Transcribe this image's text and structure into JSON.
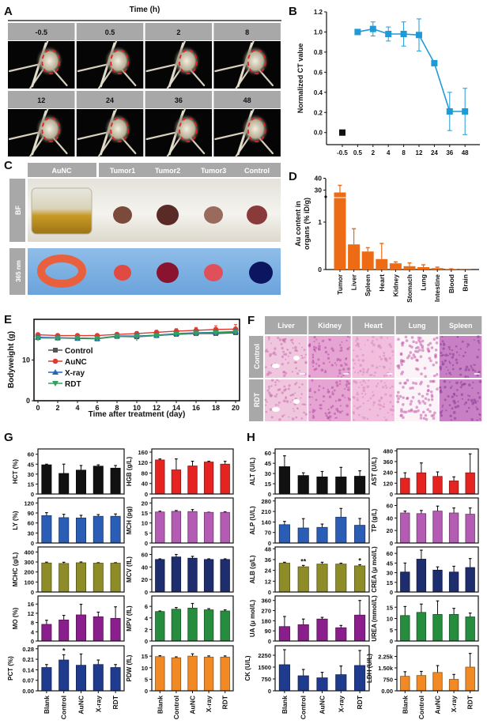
{
  "panel_a": {
    "label": "A",
    "title": "Time (h)",
    "timepoints": [
      "-0.5",
      "0.5",
      "2",
      "8",
      "12",
      "24",
      "36",
      "48"
    ]
  },
  "panel_b": {
    "label": "B",
    "chart_ref": 0
  },
  "panel_c": {
    "label": "C",
    "columns": [
      "AuNC",
      "Tumor1",
      "Tumor2",
      "Tumor3",
      "Control"
    ],
    "rows": [
      "BF",
      "365 nm"
    ]
  },
  "panel_d": {
    "label": "D"
  },
  "panel_e": {
    "label": "E"
  },
  "panel_f": {
    "label": "F",
    "columns": [
      "Liver",
      "Kidney",
      "Heart",
      "Lung",
      "Spleen"
    ],
    "rows": [
      "Control",
      "RDT"
    ]
  },
  "panel_g": {
    "label": "G"
  },
  "panel_h": {
    "label": "H"
  },
  "chart_data": [
    {
      "panel": "B",
      "type": "line",
      "ylabel": "Normalized CT value",
      "categories": [
        "-0.5",
        "0.5",
        "2",
        "4",
        "8",
        "12",
        "24",
        "36",
        "48"
      ],
      "values": [
        0.0,
        1.0,
        1.03,
        0.98,
        0.98,
        0.97,
        0.69,
        0.21,
        0.21
      ],
      "errors": [
        0,
        0,
        0.07,
        0.07,
        0.12,
        0.16,
        0.02,
        0.19,
        0.23
      ],
      "ylim": [
        -0.12,
        1.2
      ],
      "yticks": [
        0,
        0.2,
        0.4,
        0.6,
        0.8,
        1.0,
        1.2
      ],
      "ytick_labels": [
        "0.0",
        "0.2",
        "0.4",
        "0.6",
        "0.8",
        "1.0",
        "1.2"
      ],
      "colors": {
        "baseline": "#111111",
        "series": "#1e9ad6"
      },
      "grid": false
    },
    {
      "panel": "D",
      "type": "bar",
      "ylabel": [
        "Au content in",
        "organs (% iD/g)"
      ],
      "categories": [
        "Tumor",
        "Liver",
        "Spleen",
        "Heart",
        "Kidney",
        "Stomach",
        "Lung",
        "Intestine",
        "Blood",
        "Brain"
      ],
      "values": [
        28,
        0.53,
        0.38,
        0.22,
        0.13,
        0.07,
        0.05,
        0.03,
        0.01,
        0.005
      ],
      "errors": [
        6,
        0.33,
        0.08,
        0.33,
        0.03,
        0.07,
        0.05,
        0.02,
        0.005,
        0
      ],
      "axis_break": {
        "lower": [
          0,
          1.55
        ],
        "upper": [
          25,
          40
        ]
      },
      "yticks": [
        0,
        1,
        30,
        40
      ],
      "ytick_labels": [
        "0",
        "1",
        "30",
        "40"
      ],
      "color": "#ec6b14",
      "grid": false
    },
    {
      "panel": "E",
      "type": "line",
      "ylabel": "Bodyweight (g)",
      "xlabel": "Time after treatment (day)",
      "x": [
        0,
        2,
        4,
        6,
        8,
        10,
        12,
        14,
        16,
        18,
        20
      ],
      "xticks": [
        0,
        2,
        4,
        6,
        8,
        10,
        12,
        14,
        16,
        18,
        20
      ],
      "yticks": [
        0,
        10
      ],
      "ylim": [
        0,
        20
      ],
      "xlim": [
        -0.4,
        20.4
      ],
      "legend": "left",
      "series": [
        {
          "name": "Control",
          "color": "#555555",
          "marker": "square",
          "values": [
            15.5,
            15.4,
            15.3,
            15.2,
            15.8,
            15.7,
            16.0,
            16.3,
            16.5,
            16.5,
            16.7
          ],
          "errors": [
            0.4,
            0.4,
            0.4,
            0.4,
            0.4,
            1.0,
            0.4,
            0.4,
            0.4,
            0.4,
            0.5
          ]
        },
        {
          "name": "AuNC",
          "color": "#e03a2e",
          "marker": "circle",
          "values": [
            16.2,
            16.0,
            16.0,
            16.0,
            16.3,
            16.5,
            16.8,
            17.1,
            17.3,
            17.5,
            17.6
          ],
          "errors": [
            0.5,
            0.4,
            0.4,
            0.4,
            0.4,
            0.5,
            0.5,
            0.6,
            0.7,
            0.9,
            1.1
          ]
        },
        {
          "name": "X-ray",
          "color": "#2366bd",
          "marker": "triangle-up",
          "values": [
            15.6,
            15.5,
            15.4,
            15.3,
            15.9,
            15.9,
            16.1,
            16.5,
            16.7,
            16.8,
            17.0
          ],
          "errors": [
            0.4,
            0.4,
            0.4,
            0.4,
            0.4,
            0.5,
            0.4,
            0.4,
            0.4,
            0.5,
            0.5
          ]
        },
        {
          "name": "RDT",
          "color": "#2fa35c",
          "marker": "triangle-down",
          "values": [
            15.4,
            15.4,
            15.4,
            15.3,
            15.8,
            15.8,
            16.0,
            16.4,
            16.6,
            16.7,
            16.9
          ],
          "errors": [
            0.4,
            0.4,
            0.4,
            0.4,
            0.4,
            0.4,
            0.4,
            0.4,
            0.4,
            0.4,
            0.5
          ]
        }
      ]
    },
    {
      "panel": "G",
      "type": "bar",
      "categories": [
        "Blank",
        "Control",
        "AuNC",
        "X-ray",
        "RDT"
      ],
      "plots": [
        {
          "ylabel": "HCT (%)",
          "yticks": [
            0,
            15,
            30,
            45,
            60
          ],
          "ylim": [
            0,
            68
          ],
          "values": [
            44,
            31,
            36,
            42,
            39
          ],
          "errors": [
            1,
            14,
            7,
            2,
            4
          ],
          "color": "#111111"
        },
        {
          "ylabel": "HGB (g/L)",
          "yticks": [
            0,
            40,
            80,
            120,
            160
          ],
          "ylim": [
            0,
            172
          ],
          "values": [
            130,
            92,
            107,
            122,
            114
          ],
          "errors": [
            4,
            42,
            18,
            3,
            11
          ],
          "color": "#e52421"
        },
        {
          "ylabel": "LY (%)",
          "yticks": [
            0,
            30,
            60,
            90,
            120
          ],
          "ylim": [
            0,
            135
          ],
          "values": [
            82,
            76,
            75,
            80,
            80
          ],
          "errors": [
            9,
            10,
            8,
            5,
            7
          ],
          "color": "#2a5db5"
        },
        {
          "ylabel": "MCH (pg)",
          "yticks": [
            0,
            5,
            10,
            15,
            20
          ],
          "ylim": [
            0,
            22.5
          ],
          "values": [
            15.5,
            15.8,
            15.7,
            15.3,
            15.3
          ],
          "errors": [
            0.4,
            0.4,
            1.0,
            0.1,
            0.3
          ],
          "color": "#b45cb4"
        },
        {
          "ylabel": "MCHC (g/L)",
          "yticks": [
            0,
            100,
            200,
            300,
            400
          ],
          "ylim": [
            0,
            450
          ],
          "values": [
            290,
            285,
            292,
            288,
            288
          ],
          "errors": [
            8,
            12,
            8,
            5,
            5
          ],
          "color": "#8e8c26"
        },
        {
          "ylabel": "MCV (fL)",
          "yticks": [
            0,
            20,
            40,
            60
          ],
          "ylim": [
            0,
            72
          ],
          "values": [
            52,
            56,
            54,
            52,
            52
          ],
          "errors": [
            1,
            4,
            3,
            1,
            1
          ],
          "color": "#1d2d6e"
        },
        {
          "ylabel": "MO (%)",
          "yticks": [
            0,
            4,
            8,
            12,
            16
          ],
          "ylim": [
            0,
            19.5
          ],
          "values": [
            7.2,
            9.1,
            11.3,
            10.5,
            9.8
          ],
          "errors": [
            1.8,
            2.0,
            4.6,
            2.0,
            5.0
          ],
          "color": "#8a1e8c"
        },
        {
          "ylabel": "MPV (fL)",
          "yticks": [
            0,
            2,
            4,
            6
          ],
          "ylim": [
            0,
            7.8
          ],
          "values": [
            5.1,
            5.5,
            5.7,
            5.4,
            5.2
          ],
          "errors": [
            0.1,
            0.3,
            0.8,
            0.2,
            0.2
          ],
          "color": "#268c3e"
        },
        {
          "ylabel": "PCT (%)",
          "yticks": [
            0,
            0.07,
            0.14,
            0.21,
            0.28
          ],
          "ytick_labels": [
            "0.00",
            "0.07",
            "0.14",
            "0.21",
            "0.28"
          ],
          "ylim": [
            0,
            0.3
          ],
          "values": [
            0.155,
            0.205,
            0.17,
            0.175,
            0.155
          ],
          "errors": [
            0.02,
            0.035,
            0.075,
            0.03,
            0.02
          ],
          "color": "#1f3b8e",
          "annotations": [
            "",
            "*",
            "",
            "",
            ""
          ]
        },
        {
          "ylabel": "PDW (fL)",
          "yticks": [
            0,
            5,
            10,
            15
          ],
          "ylim": [
            0,
            19.5
          ],
          "values": [
            14.8,
            14.3,
            15.0,
            14.6,
            14.6
          ],
          "errors": [
            0.4,
            0.4,
            1.0,
            0.5,
            0.5
          ],
          "color": "#f18a24"
        }
      ]
    },
    {
      "panel": "H",
      "type": "bar",
      "categories": [
        "Blank",
        "Control",
        "AuNC",
        "X-ray",
        "RDT"
      ],
      "plots": [
        {
          "ylabel": "ALT (U/L)",
          "yticks": [
            0,
            15,
            30,
            45,
            60
          ],
          "ylim": [
            0,
            66
          ],
          "values": [
            40,
            27,
            25,
            25,
            26
          ],
          "errors": [
            16,
            4,
            8,
            14,
            8
          ],
          "color": "#111111"
        },
        {
          "ylabel": "AST (U/L)",
          "yticks": [
            0,
            120,
            240,
            360,
            480
          ],
          "ylim": [
            0,
            500
          ],
          "values": [
            175,
            235,
            195,
            145,
            235
          ],
          "errors": [
            60,
            110,
            50,
            45,
            210
          ],
          "color": "#e52421"
        },
        {
          "ylabel": "ALP (U/L)",
          "yticks": [
            0,
            70,
            140,
            210,
            280
          ],
          "ylim": [
            0,
            300
          ],
          "values": [
            122,
            100,
            104,
            172,
            118
          ],
          "errors": [
            22,
            62,
            22,
            58,
            45
          ],
          "color": "#2a5db5"
        },
        {
          "ylabel": "TP (g/L)",
          "yticks": [
            0,
            20,
            40,
            60
          ],
          "ylim": [
            0,
            72
          ],
          "values": [
            48,
            47,
            51,
            48,
            46
          ],
          "errors": [
            3,
            5,
            8,
            8,
            10
          ],
          "color": "#b45cb4"
        },
        {
          "ylabel": "ALB (g/L)",
          "yticks": [
            0,
            12,
            24,
            36,
            48
          ],
          "ylim": [
            0,
            50
          ],
          "values": [
            32,
            28,
            31,
            31,
            29
          ],
          "errors": [
            1,
            1.5,
            2,
            1,
            1.3
          ],
          "color": "#8e8c26",
          "annotations": [
            "",
            "**",
            "",
            "",
            "*"
          ]
        },
        {
          "ylabel": "CREA (μ mol/L)",
          "yticks": [
            0,
            15,
            30,
            45,
            60
          ],
          "ylim": [
            0,
            70
          ],
          "values": [
            31,
            51,
            34,
            31,
            38
          ],
          "errors": [
            14,
            14,
            5,
            9,
            14
          ],
          "color": "#1d2d6e"
        },
        {
          "ylabel": "UA (μ mol/L)",
          "yticks": [
            0,
            90,
            180,
            270,
            360
          ],
          "ylim": [
            0,
            400
          ],
          "values": [
            128,
            145,
            195,
            118,
            230
          ],
          "errors": [
            90,
            50,
            15,
            20,
            130
          ],
          "color": "#8a1e8c"
        },
        {
          "ylabel": "UREA (mmol/L)",
          "yticks": [
            0,
            5,
            10,
            15
          ],
          "ylim": [
            0,
            20
          ],
          "values": [
            11.3,
            12.7,
            11.8,
            11.8,
            10.7
          ],
          "errors": [
            4,
            3.7,
            6,
            2.7,
            1.7
          ],
          "color": "#268c3e"
        },
        {
          "ylabel": "CK (U/L)",
          "yticks": [
            0,
            750,
            1500,
            2250
          ],
          "ylim": [
            0,
            2850
          ],
          "values": [
            1650,
            950,
            820,
            1020,
            1600
          ],
          "errors": [
            950,
            400,
            350,
            550,
            950
          ],
          "color": "#1f3b8e"
        },
        {
          "ylabel": "LDH (U/L)",
          "yticks": [
            0,
            750,
            1500,
            2250
          ],
          "ytick_labels": [
            "0.00",
            "750",
            "1.50k",
            "2.25k"
          ],
          "ylim": [
            0,
            2950
          ],
          "values": [
            950,
            1000,
            1200,
            750,
            1550
          ],
          "errors": [
            300,
            270,
            450,
            320,
            900
          ],
          "color": "#f18a24"
        }
      ]
    }
  ]
}
